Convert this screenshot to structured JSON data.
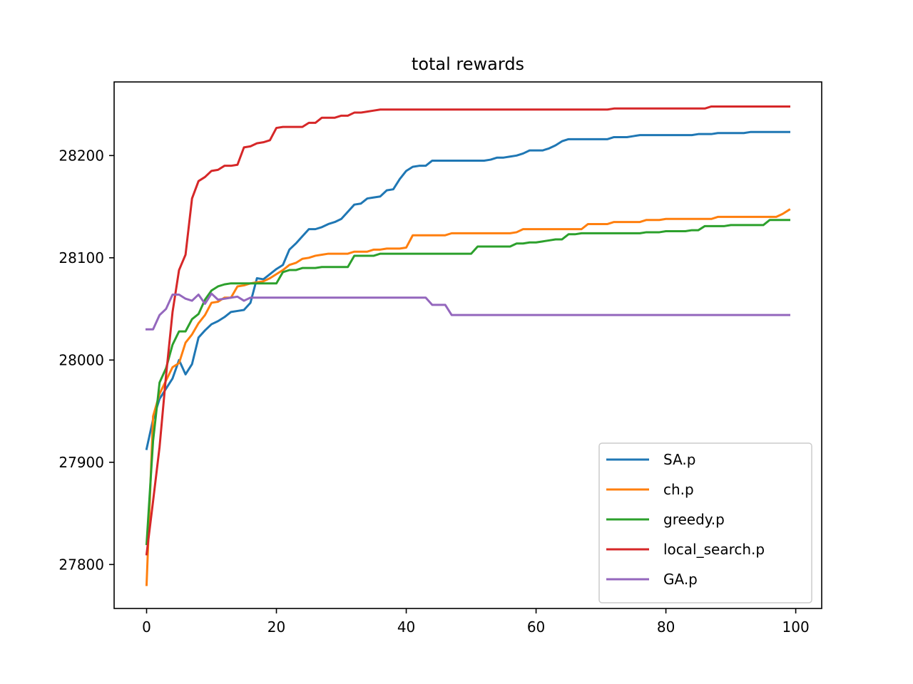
{
  "chart_data": {
    "type": "line",
    "title": "total rewards",
    "xlabel": "",
    "ylabel": "",
    "xlim": [
      -5,
      104
    ],
    "ylim": [
      27757,
      28272
    ],
    "x_ticks": [
      0,
      20,
      40,
      60,
      80,
      100
    ],
    "y_ticks": [
      27800,
      27900,
      28000,
      28100,
      28200
    ],
    "grid": false,
    "legend_position": "lower-right",
    "x": [
      0,
      1,
      2,
      3,
      4,
      5,
      6,
      7,
      8,
      9,
      10,
      11,
      12,
      13,
      14,
      15,
      16,
      17,
      18,
      19,
      20,
      21,
      22,
      23,
      24,
      25,
      26,
      27,
      28,
      29,
      30,
      31,
      32,
      33,
      34,
      35,
      36,
      37,
      38,
      39,
      40,
      41,
      42,
      43,
      44,
      45,
      46,
      47,
      48,
      49,
      50,
      51,
      52,
      53,
      54,
      55,
      56,
      57,
      58,
      59,
      60,
      61,
      62,
      63,
      64,
      65,
      66,
      67,
      68,
      69,
      70,
      71,
      72,
      73,
      74,
      75,
      76,
      77,
      78,
      79,
      80,
      81,
      82,
      83,
      84,
      85,
      86,
      87,
      88,
      89,
      90,
      91,
      92,
      93,
      94,
      95,
      96,
      97,
      98,
      99
    ],
    "series": [
      {
        "name": "SA.p",
        "color": "#1f77b4",
        "values": [
          27913,
          27942,
          27962,
          27972,
          27982,
          28000,
          27986,
          27996,
          28022,
          28029,
          28035,
          28038,
          28042,
          28047,
          28048,
          28049,
          28056,
          28080,
          28079,
          28084,
          28089,
          28093,
          28108,
          28114,
          28121,
          28128,
          28128,
          28130,
          28133,
          28135,
          28138,
          28145,
          28152,
          28153,
          28158,
          28159,
          28160,
          28166,
          28167,
          28177,
          28185,
          28189,
          28190,
          28190,
          28195,
          28195,
          28195,
          28195,
          28195,
          28195,
          28195,
          28195,
          28195,
          28196,
          28198,
          28198,
          28199,
          28200,
          28202,
          28205,
          28205,
          28205,
          28207,
          28210,
          28214,
          28216,
          28216,
          28216,
          28216,
          28216,
          28216,
          28216,
          28218,
          28218,
          28218,
          28219,
          28220,
          28220,
          28220,
          28220,
          28220,
          28220,
          28220,
          28220,
          28220,
          28221,
          28221,
          28221,
          28222,
          28222,
          28222,
          28222,
          28222,
          28223,
          28223,
          28223,
          28223,
          28223,
          28223,
          28223
        ]
      },
      {
        "name": "ch.p",
        "color": "#ff7f0e",
        "values": [
          27780,
          27945,
          27967,
          27980,
          27993,
          27997,
          28017,
          28025,
          28036,
          28044,
          28056,
          28057,
          28061,
          28061,
          28072,
          28073,
          28075,
          28076,
          28077,
          28080,
          28084,
          28088,
          28093,
          28095,
          28099,
          28100,
          28102,
          28103,
          28104,
          28104,
          28104,
          28104,
          28106,
          28106,
          28106,
          28108,
          28108,
          28109,
          28109,
          28109,
          28110,
          28122,
          28122,
          28122,
          28122,
          28122,
          28122,
          28124,
          28124,
          28124,
          28124,
          28124,
          28124,
          28124,
          28124,
          28124,
          28124,
          28125,
          28128,
          28128,
          28128,
          28128,
          28128,
          28128,
          28128,
          28128,
          28128,
          28128,
          28133,
          28133,
          28133,
          28133,
          28135,
          28135,
          28135,
          28135,
          28135,
          28137,
          28137,
          28137,
          28138,
          28138,
          28138,
          28138,
          28138,
          28138,
          28138,
          28138,
          28140,
          28140,
          28140,
          28140,
          28140,
          28140,
          28140,
          28140,
          28140,
          28140,
          28143,
          28147
        ]
      },
      {
        "name": "greedy.p",
        "color": "#2ca02c",
        "values": [
          27820,
          27921,
          27978,
          27992,
          28015,
          28028,
          28028,
          28040,
          28045,
          28059,
          28068,
          28072,
          28074,
          28075,
          28075,
          28075,
          28075,
          28075,
          28075,
          28075,
          28075,
          28086,
          28088,
          28088,
          28090,
          28090,
          28090,
          28091,
          28091,
          28091,
          28091,
          28091,
          28102,
          28102,
          28102,
          28102,
          28104,
          28104,
          28104,
          28104,
          28104,
          28104,
          28104,
          28104,
          28104,
          28104,
          28104,
          28104,
          28104,
          28104,
          28104,
          28111,
          28111,
          28111,
          28111,
          28111,
          28111,
          28114,
          28114,
          28115,
          28115,
          28116,
          28117,
          28118,
          28118,
          28123,
          28123,
          28124,
          28124,
          28124,
          28124,
          28124,
          28124,
          28124,
          28124,
          28124,
          28124,
          28125,
          28125,
          28125,
          28126,
          28126,
          28126,
          28126,
          28127,
          28127,
          28131,
          28131,
          28131,
          28131,
          28132,
          28132,
          28132,
          28132,
          28132,
          28132,
          28137,
          28137,
          28137,
          28137
        ]
      },
      {
        "name": "local_search.p",
        "color": "#d62728",
        "values": [
          27810,
          27862,
          27915,
          27985,
          28047,
          28088,
          28103,
          28158,
          28175,
          28179,
          28185,
          28186,
          28190,
          28190,
          28191,
          28208,
          28209,
          28212,
          28213,
          28215,
          28227,
          28228,
          28228,
          28228,
          28228,
          28232,
          28232,
          28237,
          28237,
          28237,
          28239,
          28239,
          28242,
          28242,
          28243,
          28244,
          28245,
          28245,
          28245,
          28245,
          28245,
          28245,
          28245,
          28245,
          28245,
          28245,
          28245,
          28245,
          28245,
          28245,
          28245,
          28245,
          28245,
          28245,
          28245,
          28245,
          28245,
          28245,
          28245,
          28245,
          28245,
          28245,
          28245,
          28245,
          28245,
          28245,
          28245,
          28245,
          28245,
          28245,
          28245,
          28245,
          28246,
          28246,
          28246,
          28246,
          28246,
          28246,
          28246,
          28246,
          28246,
          28246,
          28246,
          28246,
          28246,
          28246,
          28246,
          28248,
          28248,
          28248,
          28248,
          28248,
          28248,
          28248,
          28248,
          28248,
          28248,
          28248,
          28248,
          28248
        ]
      },
      {
        "name": "GA.p",
        "color": "#9467bd",
        "values": [
          28030,
          28030,
          28044,
          28050,
          28064,
          28064,
          28060,
          28058,
          28064,
          28055,
          28065,
          28059,
          28060,
          28061,
          28062,
          28058,
          28061,
          28061,
          28061,
          28061,
          28061,
          28061,
          28061,
          28061,
          28061,
          28061,
          28061,
          28061,
          28061,
          28061,
          28061,
          28061,
          28061,
          28061,
          28061,
          28061,
          28061,
          28061,
          28061,
          28061,
          28061,
          28061,
          28061,
          28061,
          28054,
          28054,
          28054,
          28044,
          28044,
          28044,
          28044,
          28044,
          28044,
          28044,
          28044,
          28044,
          28044,
          28044,
          28044,
          28044,
          28044,
          28044,
          28044,
          28044,
          28044,
          28044,
          28044,
          28044,
          28044,
          28044,
          28044,
          28044,
          28044,
          28044,
          28044,
          28044,
          28044,
          28044,
          28044,
          28044,
          28044,
          28044,
          28044,
          28044,
          28044,
          28044,
          28044,
          28044,
          28044,
          28044,
          28044,
          28044,
          28044,
          28044,
          28044,
          28044,
          28044,
          28044,
          28044,
          28044
        ]
      }
    ]
  }
}
